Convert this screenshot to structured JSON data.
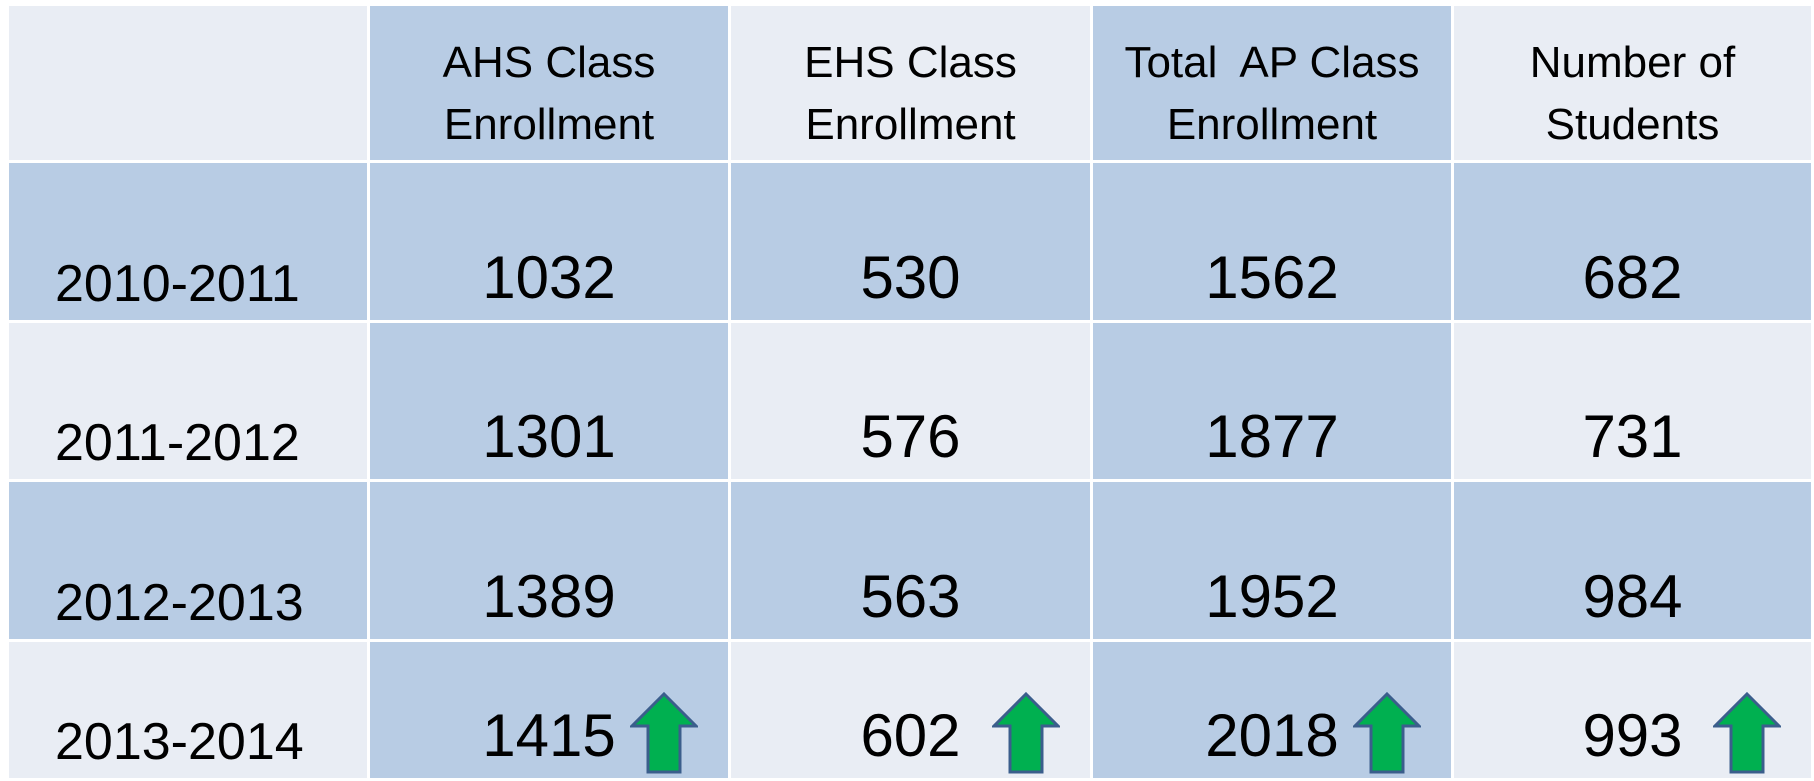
{
  "table": {
    "header": [
      "AHS Class\nEnrollment",
      "EHS Class\nEnrollment",
      "Total  AP Class\nEnrollment",
      "Number of\nStudents"
    ],
    "rows": [
      [
        "2010-2011",
        1032,
        530,
        1562,
        682
      ],
      [
        "2011-2012",
        1301,
        576,
        1877,
        731
      ],
      [
        "2012-2013",
        1389,
        563,
        1952,
        984
      ],
      [
        "2013-2014",
        1415,
        602,
        2018,
        993
      ]
    ]
  }
}
